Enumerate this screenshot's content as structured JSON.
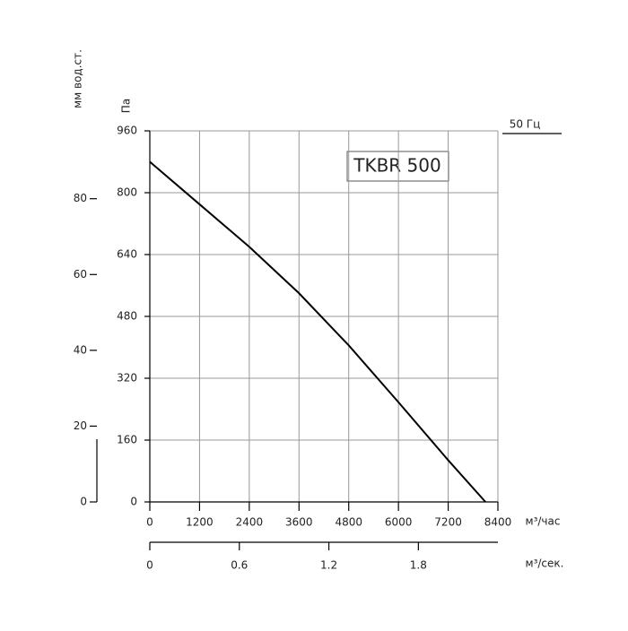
{
  "chart_data": {
    "type": "line",
    "title": "TKBR 500",
    "note": "50 Гц",
    "y_label": "Па",
    "y2_label": "мм вод.ст.",
    "x_label": "м³/час",
    "x2_label": "м³/сек.",
    "x": [
      0,
      1200,
      2400,
      3600,
      4800,
      6000,
      7200,
      8100
    ],
    "values": [
      880,
      770,
      660,
      540,
      405,
      258,
      108,
      0
    ],
    "color": "#000000",
    "xlim": [
      0,
      8400
    ],
    "xticks": [
      0,
      1200,
      2400,
      3600,
      4800,
      6000,
      7200,
      8400
    ],
    "ylim": [
      0,
      960
    ],
    "yticks": [
      0,
      160,
      320,
      480,
      640,
      800,
      960
    ],
    "y2lim": [
      0,
      97.9
    ],
    "y2ticks": [
      0,
      20,
      40,
      60,
      80
    ],
    "x2lim": [
      0,
      2.333
    ],
    "x2ticks": [
      0,
      0.6,
      1.2,
      1.8
    ],
    "grid": true
  }
}
